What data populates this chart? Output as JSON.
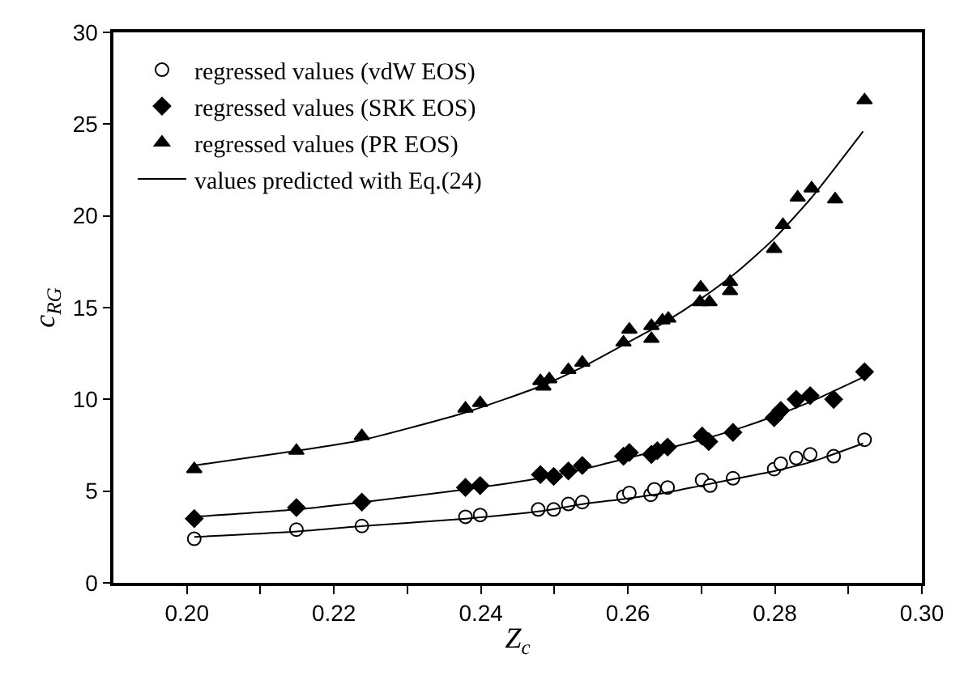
{
  "chart_data": {
    "type": "scatter",
    "xlabel": "Z$_{c}$",
    "ylabel": "c$_{RG}$",
    "xlim": [
      0.19,
      0.3
    ],
    "ylim": [
      0,
      30
    ],
    "xticks": [
      {
        "value": 0.2,
        "label": "0.20"
      },
      {
        "value": 0.21,
        "label": null
      },
      {
        "value": 0.22,
        "label": "0.22"
      },
      {
        "value": 0.23,
        "label": null
      },
      {
        "value": 0.24,
        "label": "0.24"
      },
      {
        "value": 0.25,
        "label": null
      },
      {
        "value": 0.26,
        "label": "0.26"
      },
      {
        "value": 0.27,
        "label": null
      },
      {
        "value": 0.28,
        "label": "0.28"
      },
      {
        "value": 0.29,
        "label": null
      },
      {
        "value": 0.3,
        "label": "0.30"
      }
    ],
    "yticks": [
      0,
      5,
      10,
      15,
      20,
      25,
      30
    ],
    "legend": "top left",
    "series": [
      {
        "name": "regressed values (vdW EOS)",
        "marker": "circle",
        "color": "#ffffff",
        "x": [
          0.201,
          0.2149,
          0.2238,
          0.2379,
          0.2399,
          0.2478,
          0.2499,
          0.2519,
          0.2538,
          0.2594,
          0.2602,
          0.2631,
          0.2636,
          0.2654,
          0.2701,
          0.2712,
          0.2743,
          0.2799,
          0.2808,
          0.2829,
          0.2848,
          0.288,
          0.2922
        ],
        "values": [
          2.4,
          2.9,
          3.1,
          3.6,
          3.7,
          4.0,
          4.0,
          4.3,
          4.4,
          4.7,
          4.9,
          4.8,
          5.1,
          5.2,
          5.6,
          5.3,
          5.7,
          6.2,
          6.5,
          6.8,
          7.0,
          6.9,
          7.8
        ]
      },
      {
        "name": "regressed values (SRK EOS)",
        "marker": "diamond",
        "color": "#000000",
        "x": [
          0.201,
          0.2149,
          0.2238,
          0.2379,
          0.2399,
          0.2481,
          0.2499,
          0.2519,
          0.2538,
          0.2594,
          0.2602,
          0.2632,
          0.264,
          0.2654,
          0.2701,
          0.271,
          0.2743,
          0.2799,
          0.2808,
          0.2829,
          0.2848,
          0.288,
          0.2922
        ],
        "values": [
          3.5,
          4.1,
          4.4,
          5.2,
          5.3,
          5.9,
          5.8,
          6.1,
          6.4,
          6.9,
          7.1,
          7.0,
          7.2,
          7.4,
          8.0,
          7.7,
          8.2,
          9.0,
          9.4,
          10.0,
          10.2,
          10.0,
          11.5
        ]
      },
      {
        "name": "regressed values (PR EOS)",
        "marker": "triangle",
        "color": "#000000",
        "x": [
          0.201,
          0.2149,
          0.2238,
          0.2379,
          0.2399,
          0.2481,
          0.2485,
          0.2493,
          0.2519,
          0.2538,
          0.2594,
          0.2602,
          0.2632,
          0.2632,
          0.2647,
          0.2655,
          0.2698,
          0.2699,
          0.2711,
          0.2739,
          0.2739,
          0.2799,
          0.2811,
          0.2831,
          0.285,
          0.2882,
          0.2922
        ],
        "values": [
          6.2,
          7.2,
          8.0,
          9.5,
          9.8,
          11.0,
          10.7,
          11.1,
          11.6,
          12.0,
          13.1,
          13.8,
          13.3,
          14.0,
          14.3,
          14.4,
          15.3,
          16.1,
          15.3,
          16.4,
          15.9,
          18.2,
          19.5,
          21.0,
          21.5,
          20.9,
          26.3
        ]
      },
      {
        "name": "values predicted with Eq.(24)",
        "type": "line",
        "marker": "none",
        "color": "#000000",
        "x": [
          0.201,
          0.215,
          0.224,
          0.238,
          0.248,
          0.254,
          0.26,
          0.265,
          0.27,
          0.275,
          0.28,
          0.285,
          0.292
        ],
        "values": [
          2.5,
          2.8,
          3.1,
          3.5,
          3.9,
          4.3,
          4.6,
          4.9,
          5.3,
          5.7,
          6.1,
          6.6,
          7.6
        ]
      },
      {
        "type": "line",
        "marker": "none",
        "color": "#000000",
        "x": [
          0.201,
          0.215,
          0.224,
          0.238,
          0.248,
          0.254,
          0.26,
          0.265,
          0.27,
          0.275,
          0.28,
          0.285,
          0.292
        ],
        "values": [
          3.6,
          4.0,
          4.4,
          5.1,
          5.7,
          6.2,
          6.8,
          7.3,
          7.8,
          8.4,
          9.1,
          9.9,
          11.2
        ]
      },
      {
        "type": "line",
        "marker": "none",
        "color": "#000000",
        "x": [
          0.201,
          0.215,
          0.224,
          0.238,
          0.248,
          0.254,
          0.26,
          0.265,
          0.27,
          0.275,
          0.28,
          0.285,
          0.292
        ],
        "values": [
          6.4,
          7.2,
          7.8,
          9.3,
          10.7,
          11.8,
          13.1,
          14.2,
          15.5,
          17.0,
          18.8,
          21.0,
          24.6
        ]
      }
    ]
  }
}
